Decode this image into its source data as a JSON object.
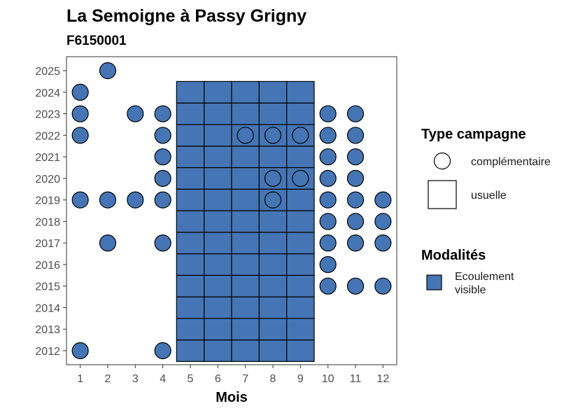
{
  "chart_data": {
    "type": "scatter",
    "title": "La Semoigne à Passy Grigny",
    "subtitle": "F6150001",
    "xlabel": "Mois",
    "ylabel": "",
    "x_ticks": [
      1,
      2,
      3,
      4,
      5,
      6,
      7,
      8,
      9,
      10,
      11,
      12
    ],
    "y_ticks": [
      2012,
      2013,
      2014,
      2015,
      2016,
      2017,
      2018,
      2019,
      2020,
      2021,
      2022,
      2023,
      2024,
      2025
    ],
    "xlim": [
      0.5,
      12.5
    ],
    "ylim": [
      2011.35,
      2025.65
    ],
    "fill_color": "#4575B4",
    "usuelle": {
      "months": [
        5,
        6,
        7,
        8,
        9
      ],
      "years": [
        2012,
        2013,
        2014,
        2015,
        2016,
        2017,
        2018,
        2019,
        2020,
        2021,
        2022,
        2023,
        2024
      ]
    },
    "complementaire": [
      {
        "x": 2,
        "y": 2025
      },
      {
        "x": 1,
        "y": 2024
      },
      {
        "x": 1,
        "y": 2023
      },
      {
        "x": 3,
        "y": 2023
      },
      {
        "x": 4,
        "y": 2023
      },
      {
        "x": 10,
        "y": 2023
      },
      {
        "x": 11,
        "y": 2023
      },
      {
        "x": 1,
        "y": 2022
      },
      {
        "x": 4,
        "y": 2022
      },
      {
        "x": 7,
        "y": 2022
      },
      {
        "x": 8,
        "y": 2022
      },
      {
        "x": 9,
        "y": 2022
      },
      {
        "x": 10,
        "y": 2022
      },
      {
        "x": 11,
        "y": 2022
      },
      {
        "x": 4,
        "y": 2021
      },
      {
        "x": 10,
        "y": 2021
      },
      {
        "x": 11,
        "y": 2021
      },
      {
        "x": 4,
        "y": 2020
      },
      {
        "x": 8,
        "y": 2020
      },
      {
        "x": 9,
        "y": 2020
      },
      {
        "x": 10,
        "y": 2020
      },
      {
        "x": 11,
        "y": 2020
      },
      {
        "x": 1,
        "y": 2019
      },
      {
        "x": 2,
        "y": 2019
      },
      {
        "x": 3,
        "y": 2019
      },
      {
        "x": 4,
        "y": 2019
      },
      {
        "x": 8,
        "y": 2019
      },
      {
        "x": 10,
        "y": 2019
      },
      {
        "x": 11,
        "y": 2019
      },
      {
        "x": 12,
        "y": 2019
      },
      {
        "x": 10,
        "y": 2018
      },
      {
        "x": 11,
        "y": 2018
      },
      {
        "x": 12,
        "y": 2018
      },
      {
        "x": 2,
        "y": 2017
      },
      {
        "x": 4,
        "y": 2017
      },
      {
        "x": 10,
        "y": 2017
      },
      {
        "x": 11,
        "y": 2017
      },
      {
        "x": 12,
        "y": 2017
      },
      {
        "x": 10,
        "y": 2016
      },
      {
        "x": 10,
        "y": 2015
      },
      {
        "x": 11,
        "y": 2015
      },
      {
        "x": 12,
        "y": 2015
      },
      {
        "x": 1,
        "y": 2012
      },
      {
        "x": 4,
        "y": 2012
      }
    ],
    "legend": {
      "type_title": "Type campagne",
      "type_items": [
        "complémentaire",
        "usuelle"
      ],
      "mod_title": "Modalités",
      "mod_items": [
        "Ecoulement visible"
      ]
    }
  }
}
